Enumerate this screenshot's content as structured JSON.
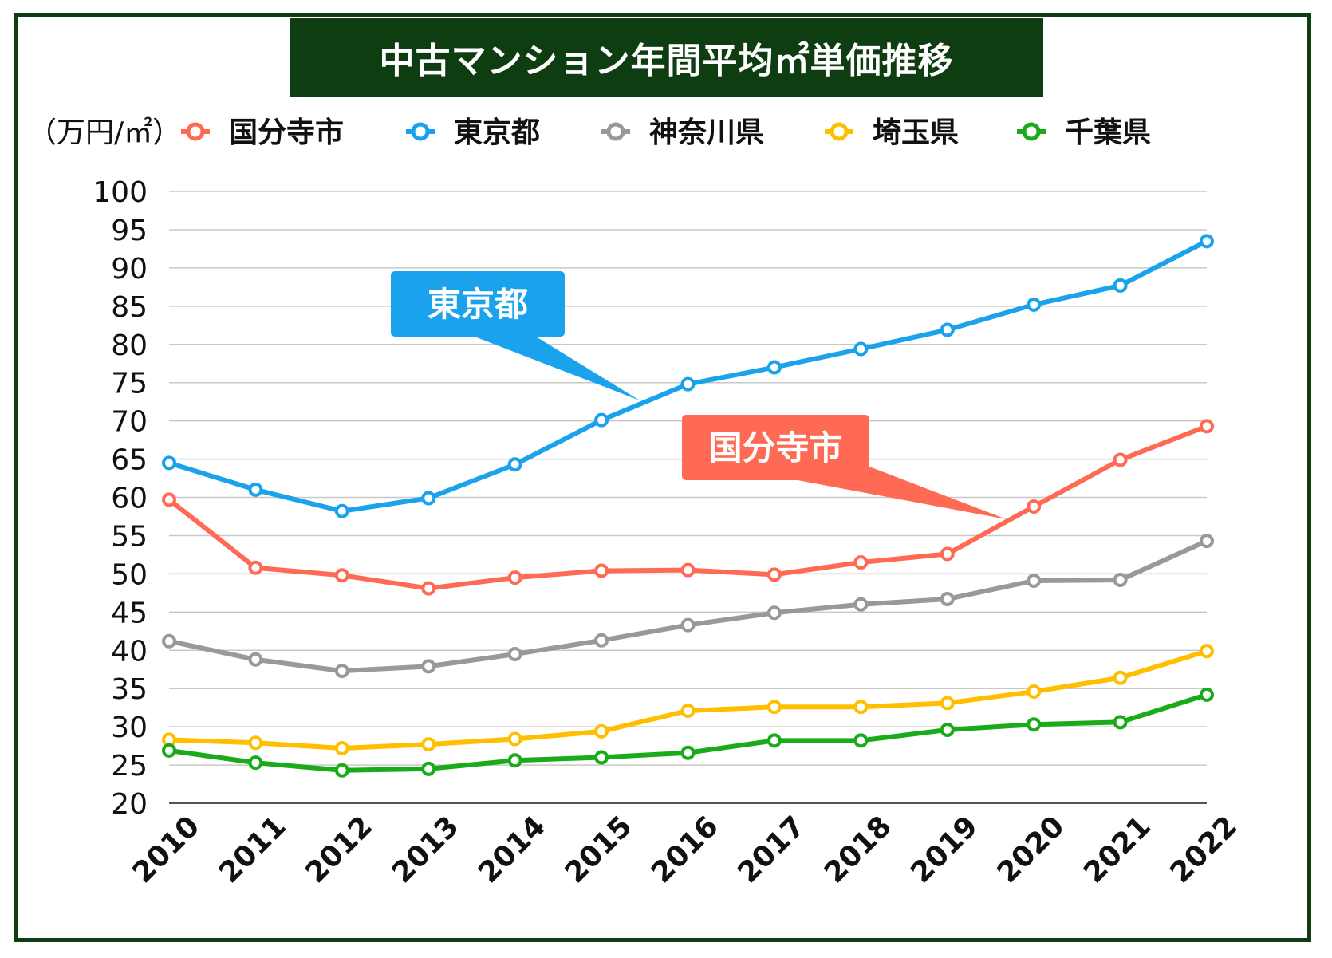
{
  "chart_data": {
    "type": "line",
    "title": "中古マンション年間平均㎡単価推移",
    "ylabel": "（万円/㎡）",
    "xlabel": "",
    "ylim": [
      20,
      100
    ],
    "yticks": [
      20,
      25,
      30,
      35,
      40,
      45,
      50,
      55,
      60,
      65,
      70,
      75,
      80,
      85,
      90,
      95,
      100
    ],
    "categories": [
      "2010",
      "2011",
      "2012",
      "2013",
      "2014",
      "2015",
      "2016",
      "2017",
      "2018",
      "2019",
      "2020",
      "2021",
      "2022"
    ],
    "grid": true,
    "legend_position": "top",
    "series": [
      {
        "name": "国分寺市",
        "color": "#ff6a55",
        "values": [
          59.7,
          50.8,
          49.8,
          48.1,
          49.5,
          50.4,
          50.5,
          49.9,
          51.5,
          52.6,
          58.8,
          64.9,
          69.3
        ]
      },
      {
        "name": "東京都",
        "color": "#1aa3ec",
        "values": [
          64.5,
          61.0,
          58.2,
          59.9,
          64.3,
          70.1,
          74.8,
          77.0,
          79.4,
          81.9,
          85.2,
          87.7,
          93.5
        ]
      },
      {
        "name": "神奈川県",
        "color": "#999999",
        "values": [
          41.2,
          38.8,
          37.3,
          37.9,
          39.5,
          41.3,
          43.3,
          44.9,
          46.0,
          46.7,
          49.1,
          49.2,
          54.3
        ]
      },
      {
        "name": "埼玉県",
        "color": "#ffbf00",
        "values": [
          28.3,
          27.9,
          27.2,
          27.7,
          28.4,
          29.4,
          32.1,
          32.6,
          32.6,
          33.1,
          34.6,
          36.4,
          39.9
        ]
      },
      {
        "name": "千葉県",
        "color": "#1aab1a",
        "values": [
          26.9,
          25.3,
          24.3,
          24.5,
          25.6,
          26.0,
          26.6,
          28.2,
          28.2,
          29.6,
          30.3,
          30.6,
          34.2
        ]
      }
    ],
    "annotations": [
      {
        "text": "東京都",
        "series": "東京都",
        "color": "#1aa3ec"
      },
      {
        "text": "国分寺市",
        "series": "国分寺市",
        "color": "#ff6a55"
      }
    ]
  }
}
